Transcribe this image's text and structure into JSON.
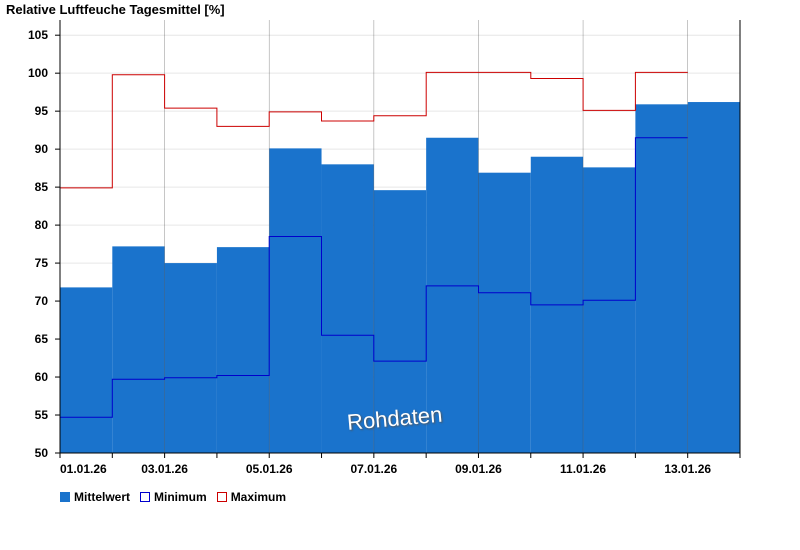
{
  "chart_data": {
    "type": "bar",
    "title": "Relative Luftfeuche Tagesmittel [%]",
    "ylim": [
      50,
      107
    ],
    "yticks": [
      50,
      55,
      60,
      65,
      70,
      75,
      80,
      85,
      90,
      95,
      100,
      105
    ],
    "x_tick_labels": [
      "01.01.26",
      "03.01.26",
      "05.01.26",
      "07.01.26",
      "09.01.26",
      "11.01.26",
      "13.01.26"
    ],
    "grid": true,
    "legend_position": "bottom-left",
    "watermark": "Rohdaten",
    "series": [
      {
        "name": "Mittelwert",
        "kind": "bar",
        "color": "#1a73cc",
        "values": [
          71.8,
          77.2,
          75.0,
          77.1,
          90.1,
          88.0,
          84.6,
          91.5,
          86.9,
          89.0,
          87.6,
          95.9,
          96.2
        ]
      },
      {
        "name": "Minimum",
        "kind": "step",
        "color": "#0000cc",
        "values": [
          54.7,
          59.7,
          59.9,
          60.2,
          78.5,
          65.5,
          62.1,
          72.0,
          71.1,
          69.5,
          70.1,
          91.5,
          null
        ]
      },
      {
        "name": "Maximum",
        "kind": "step",
        "color": "#cc0000",
        "values": [
          84.9,
          99.8,
          95.4,
          93.0,
          94.9,
          93.7,
          94.4,
          100.1,
          100.1,
          99.3,
          95.1,
          100.1,
          null
        ]
      }
    ]
  }
}
